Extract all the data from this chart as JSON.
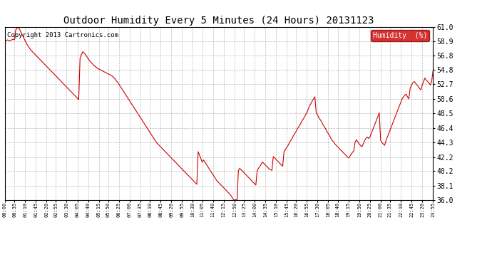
{
  "title": "Outdoor Humidity Every 5 Minutes (24 Hours) 20131123",
  "copyright_text": "Copyright 2013 Cartronics.com",
  "legend_label": "Humidity  (%)",
  "line_color": "#cc0000",
  "legend_bg": "#cc0000",
  "legend_text_color": "#ffffff",
  "background_color": "#ffffff",
  "grid_color": "#aaaaaa",
  "ylim": [
    36.0,
    61.0
  ],
  "yticks": [
    36.0,
    38.1,
    40.2,
    42.2,
    44.3,
    46.4,
    48.5,
    50.6,
    52.7,
    54.8,
    56.8,
    58.9,
    61.0
  ],
  "title_fontsize": 10,
  "copyright_fontsize": 6.5,
  "values": [
    59.0,
    59.0,
    59.1,
    59.0,
    59.0,
    59.1,
    59.2,
    59.1,
    60.5,
    60.8,
    60.9,
    60.6,
    60.2,
    59.8,
    59.4,
    59.0,
    58.6,
    58.3,
    58.0,
    57.7,
    57.5,
    57.3,
    57.1,
    56.9,
    56.7,
    56.5,
    56.3,
    56.1,
    55.9,
    55.7,
    55.5,
    55.3,
    55.1,
    54.9,
    54.7,
    54.5,
    54.3,
    54.1,
    53.9,
    53.7,
    53.5,
    53.3,
    53.1,
    52.9,
    52.7,
    52.5,
    52.3,
    52.1,
    51.9,
    51.7,
    51.5,
    51.3,
    51.1,
    50.9,
    50.7,
    50.5,
    56.5,
    57.0,
    57.4,
    57.2,
    57.0,
    56.7,
    56.4,
    56.1,
    55.9,
    55.7,
    55.5,
    55.3,
    55.2,
    55.0,
    54.9,
    54.8,
    54.7,
    54.6,
    54.5,
    54.4,
    54.3,
    54.2,
    54.1,
    54.0,
    53.9,
    53.7,
    53.5,
    53.2,
    53.0,
    52.7,
    52.4,
    52.1,
    51.8,
    51.5,
    51.2,
    50.9,
    50.6,
    50.3,
    50.0,
    49.7,
    49.4,
    49.1,
    48.8,
    48.5,
    48.2,
    47.9,
    47.6,
    47.3,
    47.0,
    46.7,
    46.4,
    46.1,
    45.8,
    45.5,
    45.2,
    44.9,
    44.6,
    44.3,
    44.1,
    43.9,
    43.7,
    43.5,
    43.3,
    43.1,
    42.9,
    42.7,
    42.5,
    42.3,
    42.1,
    41.9,
    41.7,
    41.5,
    41.3,
    41.1,
    40.9,
    40.7,
    40.5,
    40.3,
    40.1,
    39.9,
    39.7,
    39.5,
    39.3,
    39.1,
    38.9,
    38.7,
    38.5,
    38.3,
    43.0,
    42.5,
    42.0,
    41.5,
    41.8,
    41.5,
    41.2,
    40.9,
    40.6,
    40.3,
    40.0,
    39.7,
    39.4,
    39.1,
    38.8,
    38.6,
    38.4,
    38.2,
    38.0,
    37.8,
    37.6,
    37.4,
    37.2,
    37.0,
    36.8,
    36.5,
    36.2,
    36.0,
    36.1,
    36.0,
    40.3,
    40.6,
    40.4,
    40.2,
    40.0,
    39.8,
    39.6,
    39.4,
    39.2,
    39.0,
    38.8,
    38.6,
    38.4,
    38.2,
    40.3,
    40.6,
    40.9,
    41.2,
    41.5,
    41.3,
    41.1,
    40.9,
    40.7,
    40.5,
    40.4,
    40.3,
    42.3,
    42.1,
    41.9,
    41.7,
    41.5,
    41.3,
    41.1,
    40.9,
    43.0,
    43.3,
    43.6,
    43.9,
    44.3,
    44.6,
    44.9,
    45.3,
    45.6,
    45.9,
    46.3,
    46.6,
    46.9,
    47.3,
    47.6,
    47.9,
    48.3,
    48.6,
    49.1,
    49.6,
    49.9,
    50.3,
    50.6,
    50.9,
    48.6,
    48.3,
    47.9,
    47.6,
    47.3,
    46.9,
    46.6,
    46.3,
    45.9,
    45.6,
    45.3,
    44.9,
    44.6,
    44.4,
    44.1,
    43.9,
    43.7,
    43.5,
    43.3,
    43.1,
    42.9,
    42.7,
    42.5,
    42.3,
    42.1,
    42.3,
    42.6,
    42.9,
    43.1,
    44.4,
    44.7,
    44.4,
    44.1,
    43.9,
    43.7,
    44.1,
    44.6,
    44.9,
    45.1,
    44.9,
    45.1,
    45.6,
    46.1,
    46.6,
    47.1,
    47.6,
    48.1,
    48.6,
    44.6,
    44.3,
    44.1,
    43.9,
    44.6,
    45.1,
    45.6,
    46.1,
    46.6,
    47.1,
    47.6,
    48.1,
    48.6,
    49.1,
    49.6,
    50.1,
    50.6,
    50.9,
    51.1,
    51.3,
    50.9,
    50.6,
    52.1,
    52.6,
    52.9,
    53.1,
    52.9,
    52.6,
    52.4,
    52.1,
    51.9,
    52.6,
    53.1,
    53.6,
    53.3,
    53.1,
    52.9,
    52.6,
    53.1,
    54.6
  ],
  "x_tick_labels": [
    "00:00",
    "00:35",
    "01:10",
    "01:45",
    "02:20",
    "02:55",
    "03:30",
    "04:05",
    "04:40",
    "05:15",
    "05:50",
    "06:25",
    "07:00",
    "07:35",
    "08:10",
    "08:45",
    "09:20",
    "09:55",
    "10:30",
    "11:05",
    "11:40",
    "12:15",
    "12:50",
    "13:25",
    "14:00",
    "14:35",
    "15:10",
    "15:45",
    "16:20",
    "16:55",
    "17:30",
    "18:05",
    "18:40",
    "19:15",
    "19:50",
    "20:25",
    "21:00",
    "21:35",
    "22:10",
    "22:45",
    "23:20",
    "23:55"
  ]
}
